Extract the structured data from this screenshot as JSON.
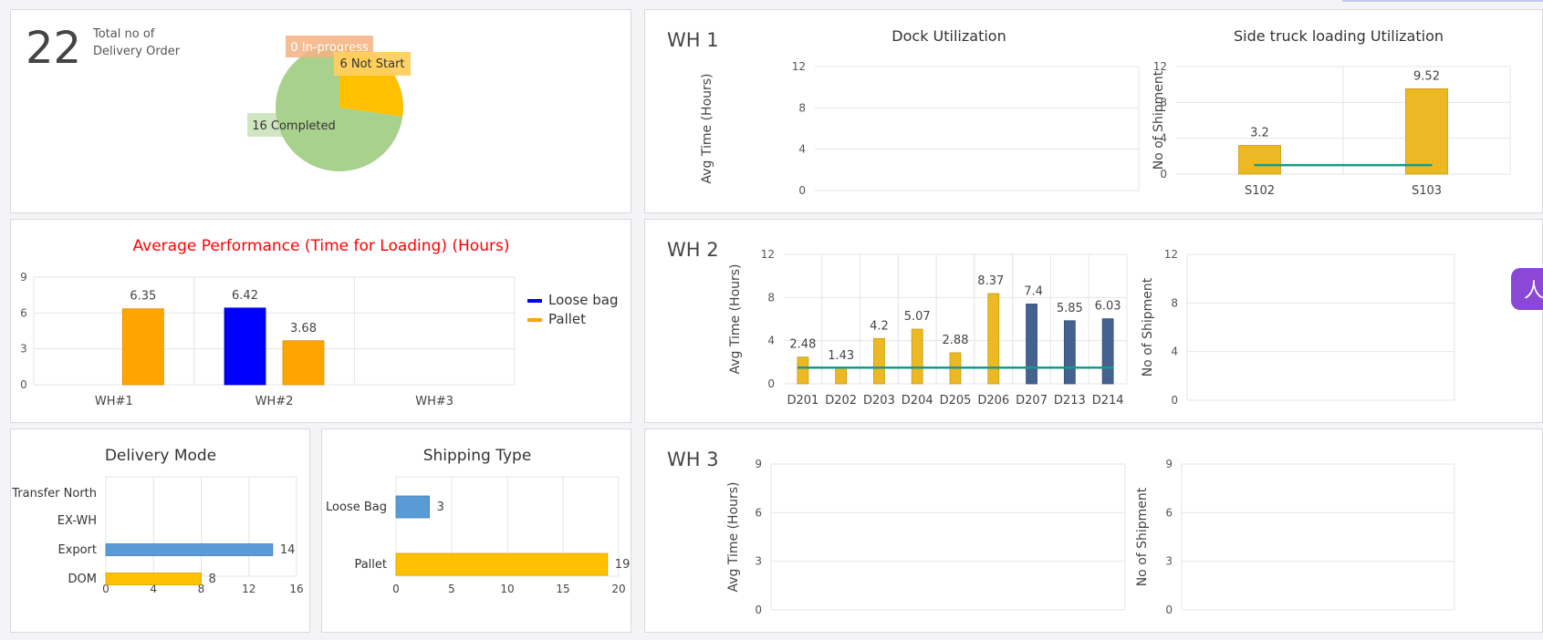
{
  "summary": {
    "total_count": "22",
    "total_label_line1": "Total no of",
    "total_label_line2": "Delivery Order"
  },
  "warehouses": {
    "wh1": "WH 1",
    "wh2": "WH 2",
    "wh3": "WH 3"
  },
  "colors": {
    "completed": "#a9d18e",
    "not_start": "#ffc000",
    "in_progress": "#f4b183",
    "loose_bag": "#0000ff",
    "pallet": "#ffa500",
    "gold_bar": "#ecb925",
    "navy_bar": "#44618f",
    "trend": "#169a8b",
    "blue_bar": "#5b9bd5",
    "grid": "#e4e4e4",
    "title_red": "#ff0000"
  },
  "chart_data": [
    {
      "id": "status-pie",
      "type": "pie",
      "title": "",
      "labels": [
        "0 In-progress",
        "6 Not Start",
        "16 Completed"
      ],
      "values": [
        0,
        6,
        16
      ],
      "categories": [
        "In-progress",
        "Not Start",
        "Completed"
      ]
    },
    {
      "id": "avg-performance",
      "type": "bar",
      "title": "Average Performance (Time for Loading) (Hours)",
      "categories": [
        "WH#1",
        "WH#2",
        "WH#3"
      ],
      "series": [
        {
          "name": "Loose bag",
          "values": [
            null,
            6.42,
            null
          ]
        },
        {
          "name": "Pallet",
          "values": [
            6.35,
            3.68,
            null
          ]
        }
      ],
      "ylim": [
        0,
        9
      ],
      "yticks": [
        0,
        3,
        6,
        9
      ],
      "legend": "right"
    },
    {
      "id": "delivery-mode",
      "type": "bar",
      "orientation": "horizontal",
      "title": "Delivery Mode",
      "categories": [
        "Transfer North",
        "EX-WH",
        "Export",
        "DOM"
      ],
      "values": [
        null,
        null,
        14,
        8
      ],
      "xlim": [
        0,
        16
      ],
      "xticks": [
        0,
        4,
        8,
        12,
        16
      ]
    },
    {
      "id": "shipping-type",
      "type": "bar",
      "orientation": "horizontal",
      "title": "Shipping Type",
      "categories": [
        "Loose Bag",
        "Pallet"
      ],
      "values": [
        3,
        19
      ],
      "xlim": [
        0,
        20
      ],
      "xticks": [
        0,
        5,
        10,
        15,
        20
      ]
    },
    {
      "id": "wh1-dock",
      "type": "bar",
      "title": "Dock Utilization",
      "ylabel": "Avg Time (Hours)",
      "categories": [],
      "values": [],
      "ylim": [
        0,
        12
      ],
      "yticks": [
        0,
        4,
        8,
        12
      ]
    },
    {
      "id": "wh1-side",
      "type": "bar",
      "title": "Side truck loading Utilization",
      "ylabel": "No of Shipment",
      "categories": [
        "S102",
        "S103"
      ],
      "values": [
        3.2,
        9.52
      ],
      "trend": [
        1.0,
        1.0
      ],
      "ylim": [
        0,
        12
      ],
      "yticks": [
        0,
        4,
        8,
        12
      ]
    },
    {
      "id": "wh2-dock",
      "type": "bar",
      "title": "",
      "ylabel": "Avg Time (Hours)",
      "categories": [
        "D201",
        "D202",
        "D203",
        "D204",
        "D205",
        "D206",
        "D207",
        "D213",
        "D214"
      ],
      "values": [
        2.48,
        1.43,
        4.2,
        5.07,
        2.88,
        8.37,
        7.4,
        5.85,
        6.03
      ],
      "bar_groups": [
        "gold",
        "gold",
        "gold",
        "gold",
        "gold",
        "gold",
        "navy",
        "navy",
        "navy"
      ],
      "trend": [
        1.5,
        1.5,
        1.5,
        1.5,
        1.5,
        1.5,
        1.5,
        1.5,
        1.5
      ],
      "ylim": [
        0,
        12
      ],
      "yticks": [
        0,
        4,
        8,
        12
      ]
    },
    {
      "id": "wh2-side",
      "type": "bar",
      "title": "",
      "ylabel": "No of Shipment",
      "categories": [],
      "values": [],
      "ylim": [
        0,
        12
      ],
      "yticks": [
        0,
        4,
        8,
        12
      ]
    },
    {
      "id": "wh3-dock",
      "type": "bar",
      "title": "",
      "ylabel": "Avg Time (Hours)",
      "categories": [],
      "values": [],
      "ylim": [
        0,
        9
      ],
      "yticks": [
        0,
        3,
        6,
        9
      ]
    },
    {
      "id": "wh3-side",
      "type": "bar",
      "title": "",
      "ylabel": "No of Shipment",
      "categories": [],
      "values": [],
      "ylim": [
        0,
        9
      ],
      "yticks": [
        0,
        3,
        6,
        9
      ]
    }
  ]
}
